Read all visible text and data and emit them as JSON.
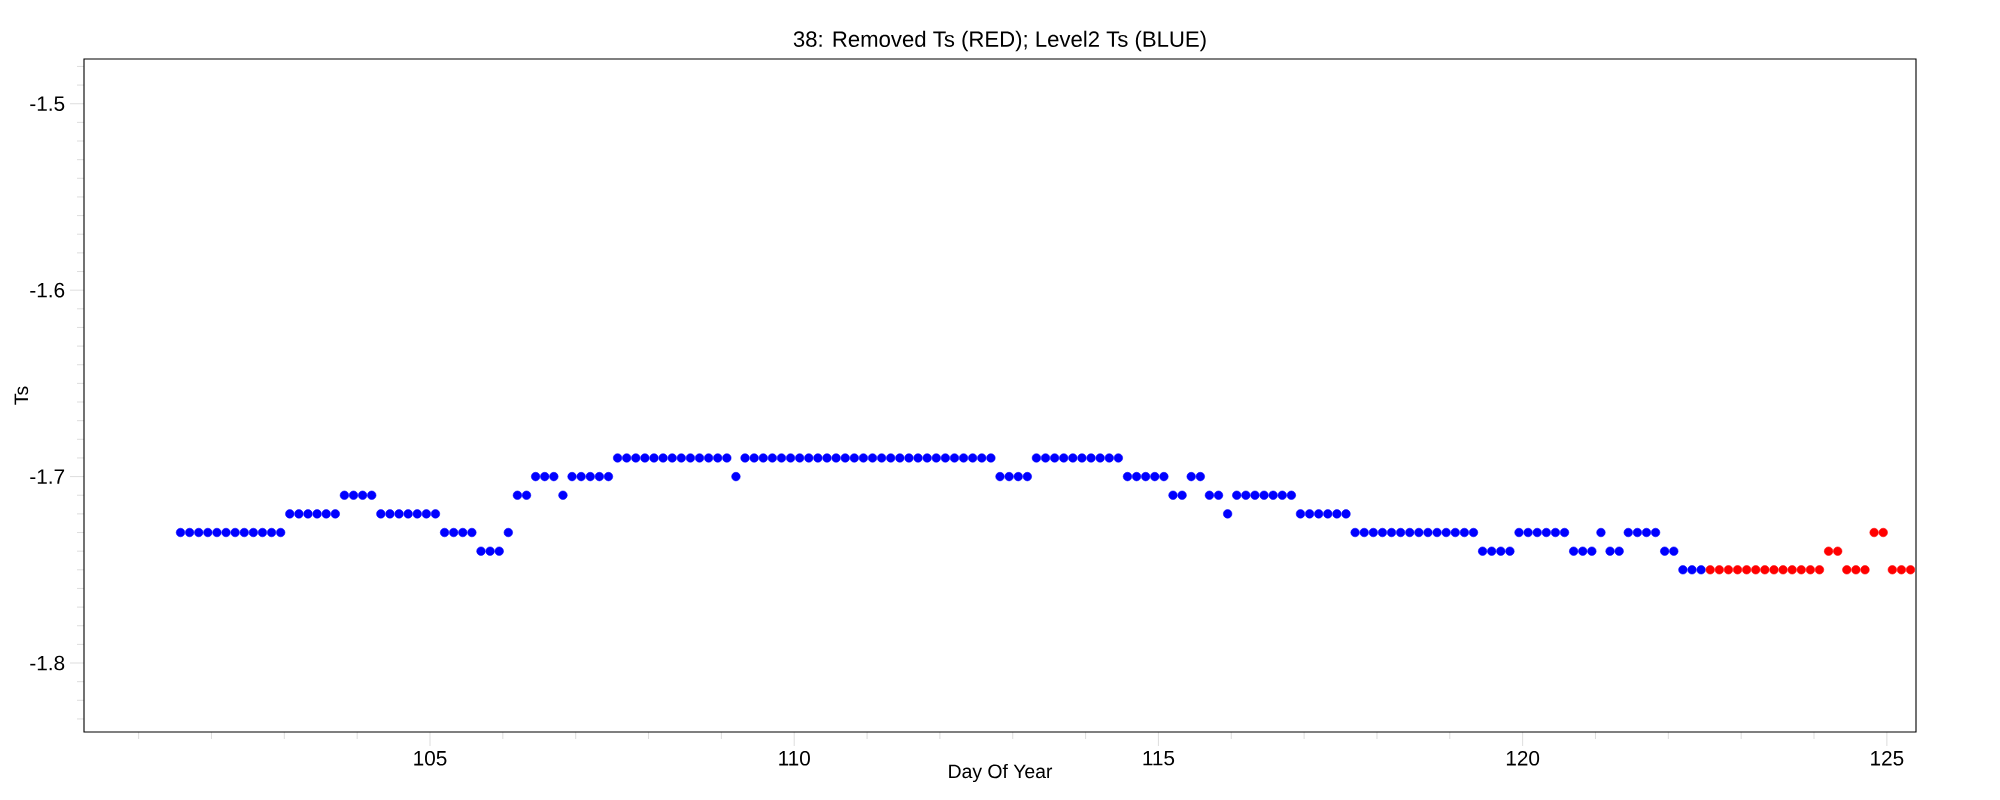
{
  "chart_data": {
    "type": "scatter",
    "title": "38: Removed Ts (RED); Level2 Ts (BLUE)",
    "xlabel": "Day Of Year",
    "ylabel": "Ts",
    "xlim": [
      100.25,
      125.4
    ],
    "ylim": [
      -1.837,
      -1.476
    ],
    "marker": "circle",
    "xticks": [
      {
        "value": 101,
        "label": null
      },
      {
        "value": 102,
        "label": null
      },
      {
        "value": 103,
        "label": null
      },
      {
        "value": 104,
        "label": null
      },
      105,
      {
        "value": 106,
        "label": null
      },
      {
        "value": 107,
        "label": null
      },
      {
        "value": 108,
        "label": null
      },
      {
        "value": 109,
        "label": null
      },
      110,
      {
        "value": 111,
        "label": null
      },
      {
        "value": 112,
        "label": null
      },
      {
        "value": 113,
        "label": null
      },
      {
        "value": 114,
        "label": null
      },
      115,
      {
        "value": 116,
        "label": null
      },
      {
        "value": 117,
        "label": null
      },
      {
        "value": 118,
        "label": null
      },
      {
        "value": 119,
        "label": null
      },
      120,
      {
        "value": 121,
        "label": null
      },
      {
        "value": 122,
        "label": null
      },
      {
        "value": 123,
        "label": null
      },
      {
        "value": 124,
        "label": null
      },
      125
    ],
    "yticks": [
      {
        "value": -1.83,
        "label": null
      },
      {
        "value": -1.82,
        "label": null
      },
      {
        "value": -1.81,
        "label": null
      },
      -1.8,
      {
        "value": -1.79,
        "label": null
      },
      {
        "value": -1.78,
        "label": null
      },
      {
        "value": -1.77,
        "label": null
      },
      {
        "value": -1.76,
        "label": null
      },
      {
        "value": -1.75,
        "label": null
      },
      {
        "value": -1.74,
        "label": null
      },
      {
        "value": -1.73,
        "label": null
      },
      {
        "value": -1.72,
        "label": null
      },
      {
        "value": -1.71,
        "label": null
      },
      -1.7,
      {
        "value": -1.69,
        "label": null
      },
      {
        "value": -1.68,
        "label": null
      },
      {
        "value": -1.67,
        "label": null
      },
      {
        "value": -1.66,
        "label": null
      },
      {
        "value": -1.65,
        "label": null
      },
      {
        "value": -1.64,
        "label": null
      },
      {
        "value": -1.63,
        "label": null
      },
      {
        "value": -1.62,
        "label": null
      },
      {
        "value": -1.61,
        "label": null
      },
      -1.6,
      {
        "value": -1.59,
        "label": null
      },
      {
        "value": -1.58,
        "label": null
      },
      {
        "value": -1.57,
        "label": null
      },
      {
        "value": -1.56,
        "label": null
      },
      {
        "value": -1.55,
        "label": null
      },
      {
        "value": -1.54,
        "label": null
      },
      {
        "value": -1.53,
        "label": null
      },
      {
        "value": -1.52,
        "label": null
      },
      {
        "value": -1.51,
        "label": null
      },
      -1.5,
      {
        "value": -1.49,
        "label": null
      },
      {
        "value": -1.48,
        "label": null
      }
    ],
    "series": [
      {
        "color": "#0000ff",
        "x": [
          101.575,
          101.7,
          101.825,
          101.95,
          102.075,
          102.2,
          102.325,
          102.45,
          102.575,
          102.7,
          102.825,
          102.95,
          103.075,
          103.2,
          103.325,
          103.45,
          103.575,
          103.7,
          103.825,
          103.95,
          104.075,
          104.2,
          104.325,
          104.45,
          104.575,
          104.7,
          104.825,
          104.95,
          105.075,
          105.2,
          105.325,
          105.45,
          105.575,
          105.7,
          105.825,
          105.95,
          106.075,
          106.2,
          106.325,
          106.45,
          106.575,
          106.7,
          106.825,
          106.95,
          107.075,
          107.2,
          107.325,
          107.45,
          107.575,
          107.7,
          107.825,
          107.95,
          108.075,
          108.2,
          108.325,
          108.45,
          108.575,
          108.7,
          108.825,
          108.95,
          109.075,
          109.2,
          109.325,
          109.45,
          109.575,
          109.7,
          109.825,
          109.95,
          110.075,
          110.2,
          110.325,
          110.45,
          110.575,
          110.7,
          110.825,
          110.95,
          111.075,
          111.2,
          111.325,
          111.45,
          111.575,
          111.7,
          111.825,
          111.95,
          112.075,
          112.2,
          112.325,
          112.45,
          112.575,
          112.7,
          112.825,
          112.95,
          113.075,
          113.2,
          113.325,
          113.45,
          113.575,
          113.7,
          113.825,
          113.95,
          114.075,
          114.2,
          114.325,
          114.45,
          114.575,
          114.7,
          114.825,
          114.95,
          115.075,
          115.2,
          115.325,
          115.45,
          115.575,
          115.7,
          115.825,
          115.95,
          116.075,
          116.2,
          116.325,
          116.45,
          116.575,
          116.7,
          116.825,
          116.95,
          117.075,
          117.2,
          117.325,
          117.45,
          117.575,
          117.7,
          117.825,
          117.95,
          118.075,
          118.2,
          118.325,
          118.45,
          118.575,
          118.7,
          118.825,
          118.95,
          119.075,
          119.2,
          119.325,
          119.45,
          119.575,
          119.7,
          119.825,
          119.95,
          120.075,
          120.2,
          120.325,
          120.45,
          120.575,
          120.7,
          120.825,
          120.95,
          121.075,
          121.2,
          121.325,
          121.45,
          121.575,
          121.7,
          121.825,
          121.95,
          122.075,
          122.2,
          122.325,
          122.45
        ],
        "values": [
          -1.73,
          -1.73,
          -1.73,
          -1.73,
          -1.73,
          -1.73,
          -1.73,
          -1.73,
          -1.73,
          -1.73,
          -1.73,
          -1.73,
          -1.72,
          -1.72,
          -1.72,
          -1.72,
          -1.72,
          -1.72,
          -1.71,
          -1.71,
          -1.71,
          -1.71,
          -1.72,
          -1.72,
          -1.72,
          -1.72,
          -1.72,
          -1.72,
          -1.72,
          -1.73,
          -1.73,
          -1.73,
          -1.73,
          -1.74,
          -1.74,
          -1.74,
          -1.73,
          -1.71,
          -1.71,
          -1.7,
          -1.7,
          -1.7,
          -1.71,
          -1.7,
          -1.7,
          -1.7,
          -1.7,
          -1.7,
          -1.69,
          -1.69,
          -1.69,
          -1.69,
          -1.69,
          -1.69,
          -1.69,
          -1.69,
          -1.69,
          -1.69,
          -1.69,
          -1.69,
          -1.69,
          -1.7,
          -1.69,
          -1.69,
          -1.69,
          -1.69,
          -1.69,
          -1.69,
          -1.69,
          -1.69,
          -1.69,
          -1.69,
          -1.69,
          -1.69,
          -1.69,
          -1.69,
          -1.69,
          -1.69,
          -1.69,
          -1.69,
          -1.69,
          -1.69,
          -1.69,
          -1.69,
          -1.69,
          -1.69,
          -1.69,
          -1.69,
          -1.69,
          -1.69,
          -1.7,
          -1.7,
          -1.7,
          -1.7,
          -1.69,
          -1.69,
          -1.69,
          -1.69,
          -1.69,
          -1.69,
          -1.69,
          -1.69,
          -1.69,
          -1.69,
          -1.7,
          -1.7,
          -1.7,
          -1.7,
          -1.7,
          -1.71,
          -1.71,
          -1.7,
          -1.7,
          -1.71,
          -1.71,
          -1.72,
          -1.71,
          -1.71,
          -1.71,
          -1.71,
          -1.71,
          -1.71,
          -1.71,
          -1.72,
          -1.72,
          -1.72,
          -1.72,
          -1.72,
          -1.72,
          -1.73,
          -1.73,
          -1.73,
          -1.73,
          -1.73,
          -1.73,
          -1.73,
          -1.73,
          -1.73,
          -1.73,
          -1.73,
          -1.73,
          -1.73,
          -1.73,
          -1.74,
          -1.74,
          -1.74,
          -1.74,
          -1.73,
          -1.73,
          -1.73,
          -1.73,
          -1.73,
          -1.73,
          -1.74,
          -1.74,
          -1.74,
          -1.73,
          -1.74,
          -1.74,
          -1.73,
          -1.73,
          -1.73,
          -1.73,
          -1.74,
          -1.74,
          -1.75,
          -1.75,
          -1.75
        ]
      },
      {
        "color": "#ff0000",
        "x": [
          122.575,
          122.7,
          122.825,
          122.95,
          123.075,
          123.2,
          123.325,
          123.45,
          123.575,
          123.7,
          123.825,
          123.95,
          124.075,
          124.2,
          124.325,
          124.45,
          124.575,
          124.7,
          124.825,
          124.95,
          125.075,
          125.2,
          125.325
        ],
        "values": [
          -1.75,
          -1.75,
          -1.75,
          -1.75,
          -1.75,
          -1.75,
          -1.75,
          -1.75,
          -1.75,
          -1.75,
          -1.75,
          -1.75,
          -1.75,
          -1.74,
          -1.74,
          -1.75,
          -1.75,
          -1.75,
          -1.73,
          -1.73,
          -1.75,
          -1.75,
          -1.75
        ]
      }
    ]
  }
}
